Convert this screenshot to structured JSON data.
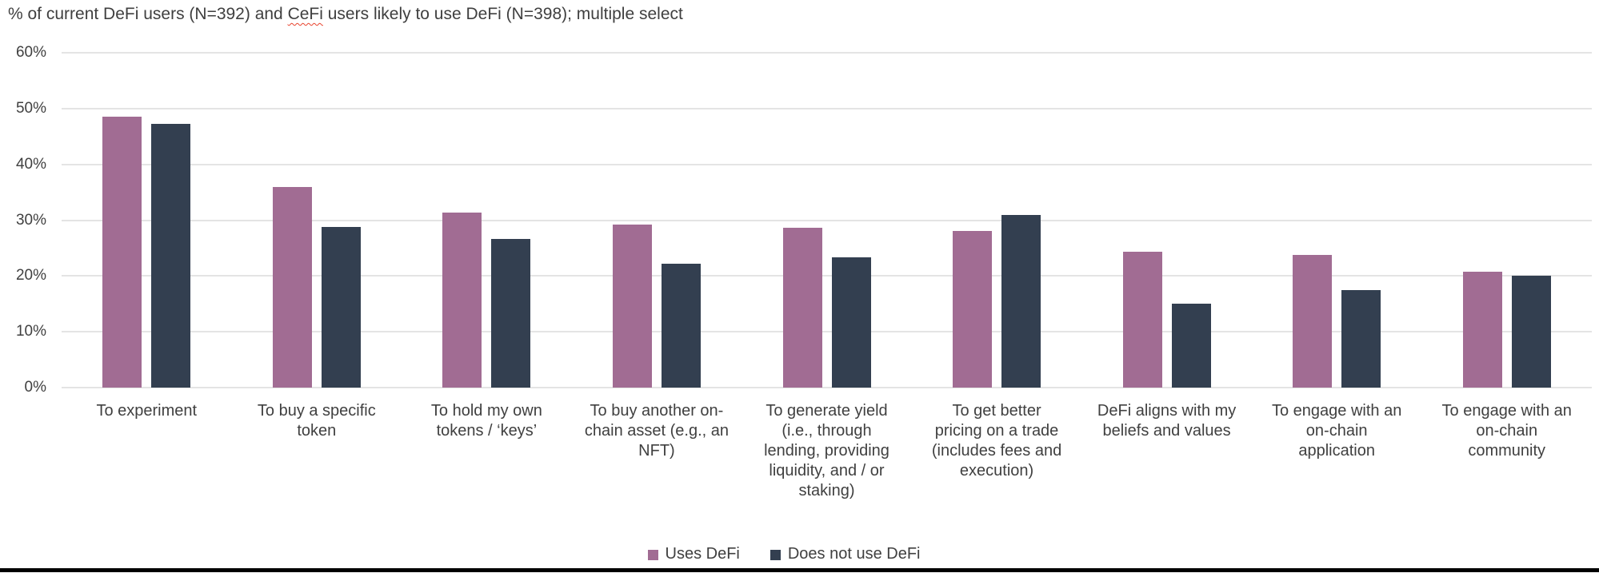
{
  "title": {
    "prefix": "% of current DeFi users (N=392) and ",
    "spellchecked_word": "CeFi",
    "suffix": " users likely to use DeFi (N=398); multiple select",
    "full": "% of current DeFi users (N=392) and CeFi users likely to use DeFi (N=398); multiple select"
  },
  "colors": {
    "uses_defi": "#a16c93",
    "does_not_use_defi": "#333f50",
    "gridline": "#e4e4e4",
    "text": "#404040",
    "spellcheck_underline": "#e8422d"
  },
  "chart_data": {
    "type": "bar",
    "title": "% of current DeFi users (N=392) and CeFi users likely to use DeFi (N=398); multiple select",
    "categories": [
      "To experiment",
      "To buy a specific\ntoken",
      "To hold my own\ntokens / ‘keys’",
      "To buy another on-\nchain asset (e.g., an\nNFT)",
      "To generate yield\n(i.e., through\nlending, providing\nliquidity, and / or\nstaking)",
      "To get better\npricing on a trade\n(includes fees and\nexecution)",
      "DeFi aligns with my\nbeliefs and values",
      "To engage with an\non-chain\napplication",
      "To engage with an\non-chain\ncommunity"
    ],
    "series": [
      {
        "name": "Uses DeFi",
        "color": "#a16c93",
        "values": [
          48.5,
          36.0,
          31.3,
          29.2,
          28.7,
          28.1,
          24.3,
          23.8,
          20.8
        ]
      },
      {
        "name": "Does not use DeFi",
        "color": "#333f50",
        "values": [
          47.3,
          28.8,
          26.6,
          22.2,
          23.3,
          31.0,
          15.0,
          17.4,
          20.1
        ]
      }
    ],
    "xlabel": "",
    "ylabel": "",
    "ylim": [
      0,
      60
    ],
    "ytick_step": 10,
    "yticks": [
      "0%",
      "10%",
      "20%",
      "30%",
      "40%",
      "50%",
      "60%"
    ],
    "grid": true,
    "legend_position": "bottom"
  }
}
